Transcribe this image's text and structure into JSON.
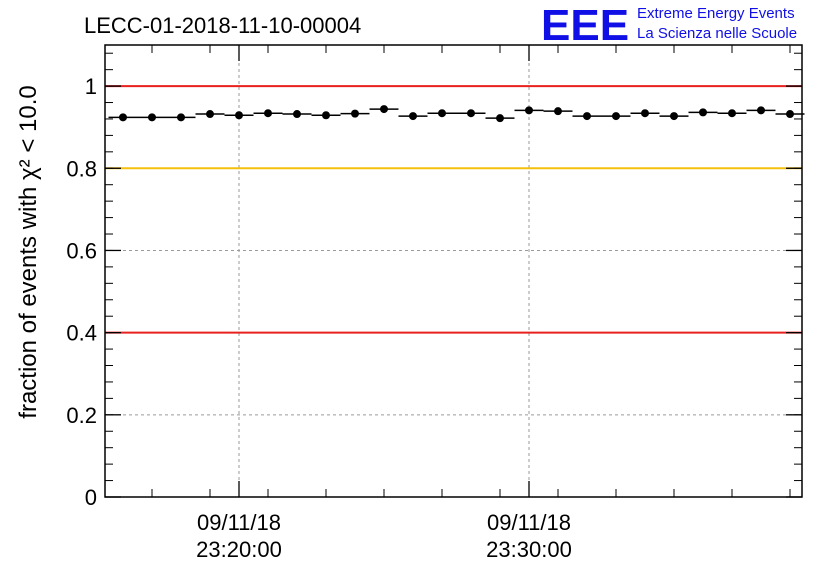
{
  "chart_data": {
    "type": "scatter",
    "title": "LECC-01-2018-11-10-00004",
    "ylabel": "fraction of events with χ² < 10.0",
    "xlabel": "",
    "ylim": [
      0,
      1.1
    ],
    "grid": true,
    "xticks": [
      {
        "date": "09/11/18",
        "time": "23:20:00"
      },
      {
        "date": "09/11/18",
        "time": "23:30:00"
      }
    ],
    "yticks": [
      "0",
      "0.2",
      "0.4",
      "0.6",
      "0.8",
      "1"
    ],
    "reference_lines": [
      {
        "value": 1.0,
        "color": "#e8201e"
      },
      {
        "value": 0.8,
        "color": "#f5bf0b"
      },
      {
        "value": 0.4,
        "color": "#e8201e"
      }
    ],
    "series": [
      {
        "points": [
          {
            "time": "23:16:00",
            "value": 0.924
          },
          {
            "time": "23:17:00",
            "value": 0.924
          },
          {
            "time": "23:18:00",
            "value": 0.924
          },
          {
            "time": "23:19:00",
            "value": 0.932
          },
          {
            "time": "23:20:00",
            "value": 0.929
          },
          {
            "time": "23:21:00",
            "value": 0.934
          },
          {
            "time": "23:22:00",
            "value": 0.932
          },
          {
            "time": "23:23:00",
            "value": 0.929
          },
          {
            "time": "23:24:00",
            "value": 0.933
          },
          {
            "time": "23:25:00",
            "value": 0.944
          },
          {
            "time": "23:26:00",
            "value": 0.927
          },
          {
            "time": "23:27:00",
            "value": 0.934
          },
          {
            "time": "23:28:00",
            "value": 0.934
          },
          {
            "time": "23:29:00",
            "value": 0.922
          },
          {
            "time": "23:30:00",
            "value": 0.941
          },
          {
            "time": "23:31:00",
            "value": 0.939
          },
          {
            "time": "23:32:00",
            "value": 0.927
          },
          {
            "time": "23:33:00",
            "value": 0.927
          },
          {
            "time": "23:34:00",
            "value": 0.934
          },
          {
            "time": "23:35:00",
            "value": 0.927
          },
          {
            "time": "23:36:00",
            "value": 0.936
          },
          {
            "time": "23:37:00",
            "value": 0.934
          },
          {
            "time": "23:38:00",
            "value": 0.941
          },
          {
            "time": "23:39:00",
            "value": 0.932
          }
        ]
      }
    ]
  },
  "logo": {
    "mark": "EEE",
    "line1": "Extreme Energy Events",
    "line2": "La Scienza nelle Scuole",
    "color": "#1010e6"
  }
}
